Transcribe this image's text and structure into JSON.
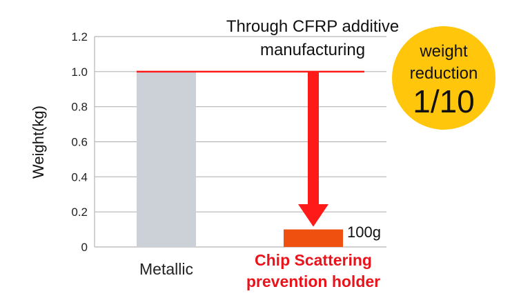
{
  "chart_data": {
    "type": "bar",
    "ylabel": "Weight(kg)",
    "ylim": [
      0,
      1.2
    ],
    "yticks": [
      "0",
      "0.2",
      "0.4",
      "0.6",
      "0.8",
      "1.0",
      "1.2"
    ],
    "grid": true,
    "categories": [
      {
        "line1": "Metallic",
        "line2": ""
      },
      {
        "line1": "Chip Scattering",
        "line2": "prevention holder"
      }
    ],
    "values": [
      1.0,
      0.1
    ],
    "data_labels": [
      "",
      "100g"
    ],
    "annotation": {
      "line1": "Through CFRP additive",
      "line2": "manufacturing"
    },
    "badge": {
      "line1": "weight",
      "line2": "reduction",
      "value": "1/10"
    },
    "colors": {
      "metallic_bar": "#cbd1d7",
      "cfrp_bar": "#f0500f",
      "arrow": "#ff1a1a",
      "badge": "#ffc60b",
      "highlight_text": "#e8131b",
      "grid": "#b5b5b5"
    }
  }
}
